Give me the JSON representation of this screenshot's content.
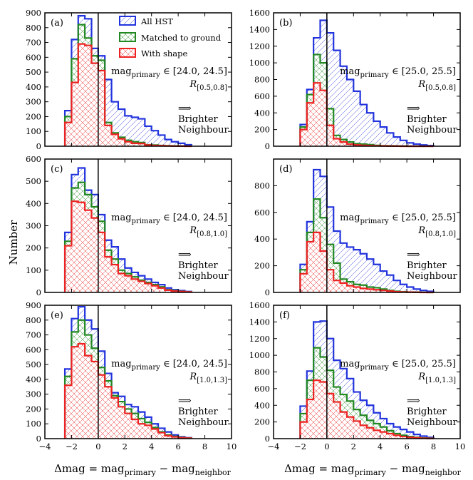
{
  "figure": {
    "ylabel": "Number",
    "xlabel": "Δmag = mag",
    "xlabel_sub1": "primary",
    "xlabel_mid": " − mag",
    "xlabel_sub2": "neighbor",
    "legend": [
      "All HST",
      "Matched to ground",
      "With shape"
    ],
    "series_colors": {
      "All HST": "#2233dd",
      "Matched to ground": "#228822",
      "With shape": "#ee2222"
    },
    "arrow_text": "⟹",
    "arrow_label_1": "Brighter",
    "arrow_label_2": "Neighbour"
  },
  "chart_data": [
    {
      "type": "histogram",
      "panel": "(a)",
      "mag_label": "mag",
      "mag_sub": "primary",
      "range_text": " ∈ [24.0, 24.5]",
      "r_label": "R",
      "r_sub": "[0.5,0.8]",
      "xlim": [
        -4,
        10
      ],
      "ylim": [
        0,
        900
      ],
      "yticks": [
        0,
        100,
        200,
        300,
        400,
        500,
        600,
        700,
        800,
        900
      ],
      "xticks": [
        -4,
        -2,
        0,
        2,
        4,
        6,
        8,
        10
      ],
      "bin_edges": [
        -2.5,
        -2.0,
        -1.5,
        -1.0,
        -0.5,
        0.0,
        0.5,
        1.0,
        1.5,
        2.0,
        2.5,
        3.0,
        3.5,
        4.0,
        4.5,
        5.0,
        5.5,
        6.0,
        6.5,
        7.0
      ],
      "series": [
        {
          "name": "All HST",
          "values": [
            240,
            720,
            880,
            860,
            660,
            610,
            450,
            300,
            250,
            205,
            195,
            185,
            135,
            105,
            75,
            45,
            30,
            20,
            10
          ]
        },
        {
          "name": "Matched to ground",
          "values": [
            200,
            590,
            820,
            730,
            610,
            580,
            160,
            90,
            60,
            40,
            30,
            25,
            10,
            8,
            5,
            3,
            2,
            1,
            1
          ]
        },
        {
          "name": "With shape",
          "values": [
            160,
            430,
            690,
            680,
            560,
            510,
            140,
            80,
            50,
            30,
            20,
            18,
            8,
            5,
            4,
            2,
            1,
            1,
            0
          ]
        }
      ]
    },
    {
      "type": "histogram",
      "panel": "(b)",
      "mag_label": "mag",
      "mag_sub": "primary",
      "range_text": " ∈ [25.0, 25.5]",
      "r_label": "R",
      "r_sub": "[0.5,0.8]",
      "xlim": [
        -4,
        10
      ],
      "ylim": [
        0,
        1600
      ],
      "yticks": [
        0,
        200,
        400,
        600,
        800,
        1000,
        1200,
        1400,
        1600
      ],
      "xticks": [
        -4,
        -2,
        0,
        2,
        4,
        6,
        8,
        10
      ],
      "bin_edges": [
        -2.0,
        -1.5,
        -1.0,
        -0.5,
        0.0,
        0.5,
        1.0,
        1.5,
        2.0,
        2.5,
        3.0,
        3.5,
        4.0,
        4.5,
        5.0,
        5.5,
        6.0,
        6.5,
        7.0,
        7.5,
        8.0
      ],
      "series": [
        {
          "name": "All HST",
          "values": [
            260,
            680,
            1300,
            1510,
            1360,
            1150,
            960,
            800,
            660,
            500,
            400,
            300,
            230,
            160,
            110,
            70,
            40,
            25,
            15,
            8
          ]
        },
        {
          "name": "Matched to ground",
          "values": [
            230,
            620,
            1100,
            1000,
            450,
            130,
            80,
            50,
            30,
            25,
            18,
            10,
            6,
            4,
            2,
            1,
            0,
            0,
            0,
            0
          ]
        },
        {
          "name": "With shape",
          "values": [
            200,
            520,
            760,
            670,
            250,
            90,
            50,
            25,
            15,
            10,
            8,
            5,
            3,
            2,
            1,
            0,
            0,
            0,
            0,
            0
          ]
        }
      ]
    },
    {
      "type": "histogram",
      "panel": "(c)",
      "mag_label": "mag",
      "mag_sub": "primary",
      "range_text": " ∈ [24.0, 24.5]",
      "r_label": "R",
      "r_sub": "[0.8,1.0]",
      "xlim": [
        -4,
        10
      ],
      "ylim": [
        0,
        600
      ],
      "yticks": [
        0,
        100,
        200,
        300,
        400,
        500,
        600
      ],
      "xticks": [
        -4,
        -2,
        0,
        2,
        4,
        6,
        8,
        10
      ],
      "bin_edges": [
        -2.5,
        -2.0,
        -1.5,
        -1.0,
        -0.5,
        0.0,
        0.5,
        1.0,
        1.5,
        2.0,
        2.5,
        3.0,
        3.5,
        4.0,
        4.5,
        5.0,
        5.5,
        6.0,
        6.5,
        7.0
      ],
      "series": [
        {
          "name": "All HST",
          "values": [
            270,
            530,
            560,
            460,
            440,
            350,
            235,
            205,
            150,
            110,
            90,
            75,
            60,
            45,
            35,
            20,
            12,
            8,
            4
          ]
        },
        {
          "name": "Matched to ground",
          "values": [
            230,
            470,
            495,
            440,
            385,
            320,
            190,
            150,
            100,
            85,
            70,
            55,
            45,
            35,
            25,
            12,
            8,
            5,
            2
          ]
        },
        {
          "name": "With shape",
          "values": [
            210,
            410,
            405,
            370,
            335,
            270,
            160,
            125,
            85,
            75,
            60,
            50,
            40,
            30,
            20,
            10,
            6,
            4,
            2
          ]
        }
      ]
    },
    {
      "type": "histogram",
      "panel": "(d)",
      "mag_label": "mag",
      "mag_sub": "primary",
      "range_text": " ∈ [25.0, 25.5]",
      "r_label": "R",
      "r_sub": "[0.8,1.0]",
      "xlim": [
        -4,
        10
      ],
      "ylim": [
        0,
        1000
      ],
      "yticks": [
        0,
        200,
        400,
        600,
        800
      ],
      "xticks": [
        -4,
        -2,
        0,
        2,
        4,
        6,
        8,
        10
      ],
      "bin_edges": [
        -2.0,
        -1.5,
        -1.0,
        -0.5,
        0.0,
        0.5,
        1.0,
        1.5,
        2.0,
        2.5,
        3.0,
        3.5,
        4.0,
        4.5,
        5.0,
        5.5,
        6.0,
        6.5,
        7.0,
        7.5,
        8.0
      ],
      "series": [
        {
          "name": "All HST",
          "values": [
            210,
            530,
            920,
            870,
            640,
            460,
            370,
            340,
            320,
            290,
            250,
            210,
            160,
            130,
            90,
            60,
            40,
            25,
            15,
            8
          ]
        },
        {
          "name": "Matched to ground",
          "values": [
            170,
            450,
            700,
            560,
            360,
            220,
            100,
            80,
            60,
            55,
            40,
            35,
            25,
            15,
            8,
            5,
            3,
            2,
            1,
            0
          ]
        },
        {
          "name": "With shape",
          "values": [
            140,
            380,
            450,
            310,
            170,
            90,
            70,
            50,
            40,
            30,
            25,
            20,
            15,
            10,
            5,
            3,
            2,
            1,
            0,
            0
          ]
        }
      ]
    },
    {
      "type": "histogram",
      "panel": "(e)",
      "mag_label": "mag",
      "mag_sub": "primary",
      "range_text": " ∈ [24.0, 24.5]",
      "r_label": "R",
      "r_sub": "[1.0,1.3]",
      "xlim": [
        -4,
        10
      ],
      "ylim": [
        0,
        900
      ],
      "yticks": [
        0,
        100,
        200,
        300,
        400,
        500,
        600,
        700,
        800,
        900
      ],
      "xticks": [
        -4,
        -2,
        0,
        2,
        4,
        6,
        8,
        10
      ],
      "bin_edges": [
        -2.5,
        -2.0,
        -1.5,
        -1.0,
        -0.5,
        0.0,
        0.5,
        1.0,
        1.5,
        2.0,
        2.5,
        3.0,
        3.5,
        4.0,
        4.5,
        5.0,
        5.5,
        6.0,
        6.5,
        7.0
      ],
      "series": [
        {
          "name": "All HST",
          "values": [
            470,
            810,
            890,
            800,
            740,
            590,
            440,
            310,
            285,
            230,
            215,
            180,
            145,
            100,
            70,
            45,
            25,
            12,
            6
          ]
        },
        {
          "name": "Matched to ground",
          "values": [
            420,
            720,
            800,
            700,
            610,
            480,
            390,
            290,
            250,
            200,
            170,
            135,
            110,
            75,
            45,
            25,
            15,
            8,
            4
          ]
        },
        {
          "name": "With shape",
          "values": [
            360,
            620,
            640,
            560,
            520,
            430,
            350,
            275,
            215,
            170,
            130,
            100,
            90,
            65,
            40,
            20,
            12,
            6,
            3
          ]
        }
      ]
    },
    {
      "type": "histogram",
      "panel": "(f)",
      "mag_label": "mag",
      "mag_sub": "primary",
      "range_text": " ∈ [25.0, 25.5]",
      "r_label": "R",
      "r_sub": "[1.0,1.3]",
      "xlim": [
        -4,
        10
      ],
      "ylim": [
        0,
        1600
      ],
      "yticks": [
        0,
        200,
        400,
        600,
        800,
        1000,
        1200,
        1400,
        1600
      ],
      "xticks": [
        -4,
        -2,
        0,
        2,
        4,
        6,
        8,
        10
      ],
      "bin_edges": [
        -2.0,
        -1.5,
        -1.0,
        -0.5,
        0.0,
        0.5,
        1.0,
        1.5,
        2.0,
        2.5,
        3.0,
        3.5,
        4.0,
        4.5,
        5.0,
        5.5,
        6.0,
        6.5,
        7.0,
        7.5,
        8.0
      ],
      "series": [
        {
          "name": "All HST",
          "values": [
            390,
            810,
            1400,
            1410,
            1200,
            940,
            840,
            720,
            560,
            460,
            400,
            310,
            240,
            180,
            140,
            110,
            80,
            50,
            30,
            15
          ]
        },
        {
          "name": "Matched to ground",
          "values": [
            300,
            700,
            1090,
            980,
            820,
            620,
            530,
            450,
            350,
            280,
            220,
            180,
            140,
            95,
            60,
            40,
            25,
            15,
            8,
            4
          ]
        },
        {
          "name": "With shape",
          "values": [
            200,
            470,
            700,
            680,
            540,
            440,
            320,
            260,
            210,
            160,
            130,
            100,
            80,
            60,
            40,
            25,
            15,
            10,
            5,
            2
          ]
        }
      ]
    }
  ]
}
